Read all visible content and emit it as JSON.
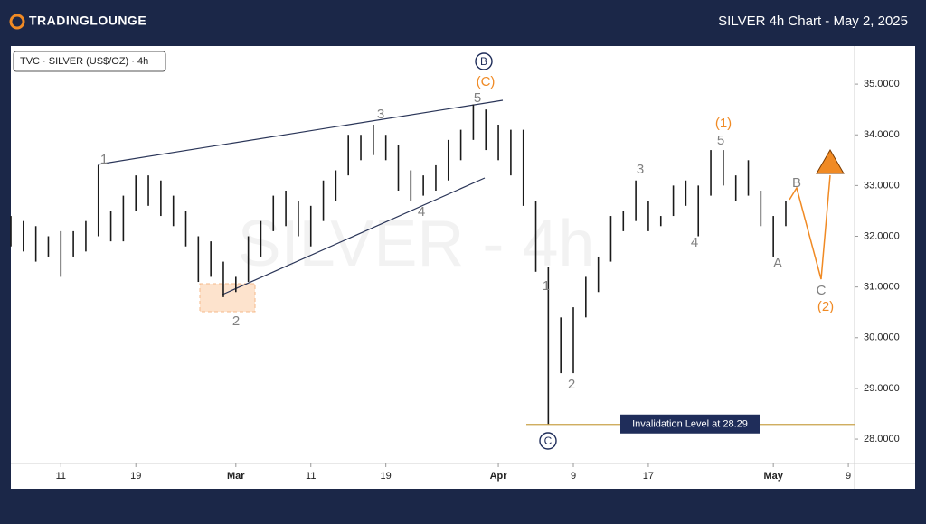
{
  "header": {
    "logo": "TradingLounge",
    "title": "SILVER 4h Chart - May 2, 2025"
  },
  "chart_data": {
    "type": "ohlc",
    "legend": "TVC · SILVER (US$/OZ) · 4h",
    "watermark": "SILVER - 4h",
    "xlim": [
      -4,
      63.5
    ],
    "xticks": [
      {
        "value": 0,
        "label": "11"
      },
      {
        "value": 6,
        "label": "19"
      },
      {
        "value": 14,
        "label": "Mar"
      },
      {
        "value": 20,
        "label": "11"
      },
      {
        "value": 26,
        "label": "19"
      },
      {
        "value": 35,
        "label": "Apr"
      },
      {
        "value": 41,
        "label": "9"
      },
      {
        "value": 47,
        "label": "17"
      },
      {
        "value": 57,
        "label": "May"
      },
      {
        "value": 63,
        "label": "9"
      }
    ],
    "ylim": [
      27.52,
      35.75
    ],
    "yticks": [
      {
        "value": 28,
        "label": "28.0000"
      },
      {
        "value": 29,
        "label": "29.0000"
      },
      {
        "value": 30,
        "label": "30.0000"
      },
      {
        "value": 31,
        "label": "31.0000"
      },
      {
        "value": 32,
        "label": "32.0000"
      },
      {
        "value": 33,
        "label": "33.0000"
      },
      {
        "value": 34,
        "label": "34.0000"
      },
      {
        "value": 35,
        "label": "35.0000"
      }
    ],
    "color": "#1a1a1a",
    "bars": [
      {
        "x": -4,
        "high": 32.4,
        "low": 31.8
      },
      {
        "x": -3,
        "high": 32.3,
        "low": 31.7
      },
      {
        "x": -2,
        "high": 32.2,
        "low": 31.5
      },
      {
        "x": -1,
        "high": 32.0,
        "low": 31.6
      },
      {
        "x": 0,
        "high": 32.1,
        "low": 31.2
      },
      {
        "x": 1,
        "high": 32.1,
        "low": 31.6
      },
      {
        "x": 2,
        "high": 32.3,
        "low": 31.7
      },
      {
        "x": 3,
        "high": 33.4,
        "low": 32.0
      },
      {
        "x": 4,
        "high": 32.5,
        "low": 31.9
      },
      {
        "x": 5,
        "high": 32.8,
        "low": 31.9
      },
      {
        "x": 6,
        "high": 33.2,
        "low": 32.5
      },
      {
        "x": 7,
        "high": 33.2,
        "low": 32.6
      },
      {
        "x": 8,
        "high": 33.1,
        "low": 32.4
      },
      {
        "x": 9,
        "high": 32.8,
        "low": 32.2
      },
      {
        "x": 10,
        "high": 32.5,
        "low": 31.8
      },
      {
        "x": 11,
        "high": 32.0,
        "low": 31.1
      },
      {
        "x": 12,
        "high": 31.9,
        "low": 31.2
      },
      {
        "x": 13,
        "high": 31.5,
        "low": 30.8
      },
      {
        "x": 14,
        "high": 31.2,
        "low": 30.9
      },
      {
        "x": 15,
        "high": 32.0,
        "low": 31.1
      },
      {
        "x": 16,
        "high": 32.3,
        "low": 31.6
      },
      {
        "x": 17,
        "high": 32.8,
        "low": 32.1
      },
      {
        "x": 18,
        "high": 32.9,
        "low": 32.2
      },
      {
        "x": 19,
        "high": 32.7,
        "low": 32.0
      },
      {
        "x": 20,
        "high": 32.6,
        "low": 31.8
      },
      {
        "x": 21,
        "high": 33.1,
        "low": 32.3
      },
      {
        "x": 22,
        "high": 33.3,
        "low": 32.7
      },
      {
        "x": 23,
        "high": 34.0,
        "low": 33.2
      },
      {
        "x": 24,
        "high": 34.0,
        "low": 33.5
      },
      {
        "x": 25,
        "high": 34.2,
        "low": 33.6
      },
      {
        "x": 26,
        "high": 34.0,
        "low": 33.5
      },
      {
        "x": 27,
        "high": 33.8,
        "low": 32.9
      },
      {
        "x": 28,
        "high": 33.3,
        "low": 32.7
      },
      {
        "x": 29,
        "high": 33.2,
        "low": 32.8
      },
      {
        "x": 30,
        "high": 33.4,
        "low": 32.9
      },
      {
        "x": 31,
        "high": 33.9,
        "low": 33.1
      },
      {
        "x": 32,
        "high": 34.1,
        "low": 33.5
      },
      {
        "x": 33,
        "high": 34.6,
        "low": 33.9
      },
      {
        "x": 34,
        "high": 34.5,
        "low": 33.7
      },
      {
        "x": 35,
        "high": 34.2,
        "low": 33.5
      },
      {
        "x": 36,
        "high": 34.1,
        "low": 33.2
      },
      {
        "x": 37,
        "high": 34.1,
        "low": 32.6
      },
      {
        "x": 38,
        "high": 32.7,
        "low": 31.3
      },
      {
        "x": 39,
        "high": 31.4,
        "low": 28.29
      },
      {
        "x": 40,
        "high": 30.4,
        "low": 29.3
      },
      {
        "x": 41,
        "high": 30.6,
        "low": 29.3
      },
      {
        "x": 42,
        "high": 31.2,
        "low": 30.4
      },
      {
        "x": 43,
        "high": 31.6,
        "low": 30.9
      },
      {
        "x": 44,
        "high": 32.4,
        "low": 31.5
      },
      {
        "x": 45,
        "high": 32.5,
        "low": 32.1
      },
      {
        "x": 46,
        "high": 33.1,
        "low": 32.3
      },
      {
        "x": 47,
        "high": 32.7,
        "low": 32.1
      },
      {
        "x": 48,
        "high": 32.4,
        "low": 32.2
      },
      {
        "x": 49,
        "high": 33.0,
        "low": 32.4
      },
      {
        "x": 50,
        "high": 33.1,
        "low": 32.6
      },
      {
        "x": 51,
        "high": 33.0,
        "low": 32.0
      },
      {
        "x": 52,
        "high": 33.7,
        "low": 32.8
      },
      {
        "x": 53,
        "high": 33.7,
        "low": 33.0
      },
      {
        "x": 54,
        "high": 33.2,
        "low": 32.7
      },
      {
        "x": 55,
        "high": 33.5,
        "low": 32.8
      },
      {
        "x": 56,
        "high": 32.9,
        "low": 32.2
      },
      {
        "x": 57,
        "high": 32.4,
        "low": 31.6
      },
      {
        "x": 58,
        "high": 32.7,
        "low": 32.2
      }
    ],
    "invalidation": {
      "value": 28.29,
      "label": "Invalidation Level at 28.29",
      "color": "#c9a24a"
    },
    "annotations": [
      {
        "text": "1",
        "color": "#808080"
      },
      {
        "text": "2",
        "color": "#808080"
      },
      {
        "text": "3",
        "color": "#808080"
      },
      {
        "text": "4",
        "color": "#808080"
      },
      {
        "text": "5",
        "color": "#808080"
      },
      {
        "text": "(C)",
        "color": "#f08a24"
      },
      {
        "text": "B",
        "color": "#1f2d5a"
      },
      {
        "text": "1",
        "color": "#808080"
      },
      {
        "text": "2",
        "color": "#808080"
      },
      {
        "text": "3",
        "color": "#808080"
      },
      {
        "text": "4",
        "color": "#808080"
      },
      {
        "text": "5",
        "color": "#808080"
      },
      {
        "text": "(1)",
        "color": "#f08a24"
      },
      {
        "text": "A",
        "color": "#808080"
      },
      {
        "text": "B",
        "color": "#808080"
      },
      {
        "text": "C",
        "color": "#808080"
      },
      {
        "text": "(2)",
        "color": "#f08a24"
      },
      {
        "text": "C",
        "color": "#1f2d5a"
      }
    ]
  }
}
